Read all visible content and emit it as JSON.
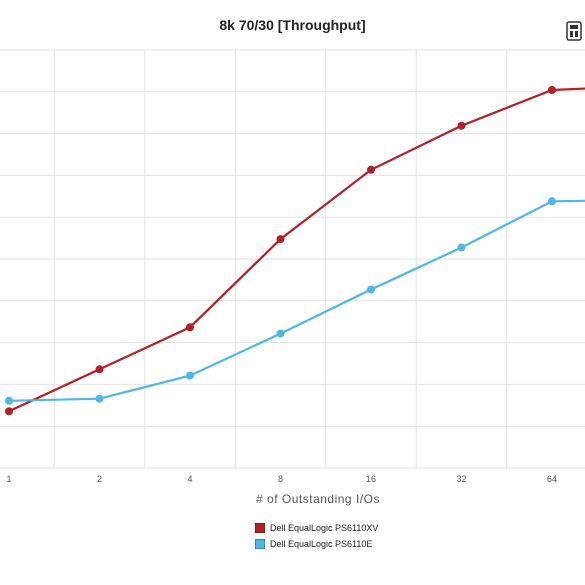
{
  "chart_data": {
    "type": "line",
    "title": "8k 70/30 [Throughput]",
    "xlabel": "# of Outstanding I/Os",
    "ylabel": "",
    "categories": [
      "1",
      "2",
      "4",
      "8",
      "16",
      "32",
      "64"
    ],
    "ylim": [
      0,
      9
    ],
    "grid": true,
    "legend_position": "bottom",
    "series": [
      {
        "name": "Dell EqualLogic PS6110XV",
        "color": "#b51f24",
        "values": [
          1.35,
          2.35,
          3.35,
          5.45,
          7.1,
          8.15,
          9.0
        ]
      },
      {
        "name": "Dell EqualLogic PS6110E",
        "color": "#4db8e8",
        "values": [
          1.6,
          1.65,
          2.2,
          3.2,
          4.25,
          5.25,
          6.35
        ]
      }
    ]
  },
  "colors": {
    "grid": "#e3e3e3",
    "text": "#555555"
  },
  "icons": {
    "corner": "site-logo-icon"
  }
}
